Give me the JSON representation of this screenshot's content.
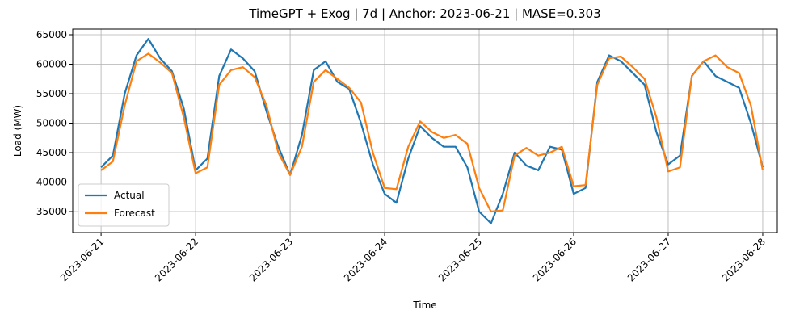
{
  "chart_data": {
    "type": "line",
    "title": "TimeGPT + Exog | 7d | Anchor: 2023-06-21 | MASE=0.303",
    "x_label": "Time",
    "y_label": "Load (MW)",
    "x": [
      0,
      3,
      6,
      9,
      12,
      15,
      18,
      21,
      24,
      27,
      30,
      33,
      36,
      39,
      42,
      45,
      48,
      51,
      54,
      57,
      60,
      63,
      66,
      69,
      72,
      75,
      78,
      81,
      84,
      87,
      90,
      93,
      96,
      99,
      102,
      105,
      108,
      111,
      114,
      117,
      120,
      123,
      126,
      129,
      132,
      135,
      138,
      141,
      144,
      147,
      150,
      153,
      156,
      159,
      162,
      165,
      168
    ],
    "series": [
      {
        "name": "Actual",
        "color": "#1f77b4",
        "values": [
          42500,
          44500,
          55000,
          61500,
          64300,
          61000,
          58800,
          52500,
          42000,
          44000,
          58000,
          62500,
          61000,
          58800,
          52000,
          46000,
          41200,
          48000,
          59000,
          60500,
          57000,
          55800,
          50000,
          43000,
          38000,
          36500,
          44000,
          49500,
          47500,
          46000,
          46000,
          42500,
          35000,
          33000,
          38000,
          45000,
          42800,
          42000,
          46000,
          45500,
          38000,
          39000,
          57000,
          61500,
          60500,
          58500,
          56500,
          48500,
          43000,
          44500,
          58000,
          60500,
          58000,
          57000,
          56000,
          50000,
          42500
        ]
      },
      {
        "name": "Forecast",
        "color": "#ff7f0e",
        "values": [
          42000,
          43500,
          53000,
          60500,
          61800,
          60300,
          58500,
          51000,
          41500,
          42500,
          56500,
          59000,
          59500,
          57800,
          53000,
          45000,
          41200,
          46000,
          57000,
          59000,
          57500,
          56000,
          53500,
          45000,
          39000,
          38800,
          46000,
          50300,
          48500,
          47500,
          48000,
          46500,
          39000,
          35000,
          35200,
          44500,
          45800,
          44500,
          45000,
          46000,
          39300,
          39500,
          56500,
          61000,
          61300,
          59500,
          57500,
          51000,
          41800,
          42500,
          58000,
          60500,
          61500,
          59500,
          58500,
          53000,
          42000
        ]
      }
    ],
    "xlim": [
      -7.2,
      171.7
    ],
    "xticks": [
      {
        "value": 0,
        "label": "2023-06-21"
      },
      {
        "value": 24,
        "label": "2023-06-22"
      },
      {
        "value": 48,
        "label": "2023-06-23"
      },
      {
        "value": 72,
        "label": "2023-06-24"
      },
      {
        "value": 96,
        "label": "2023-06-25"
      },
      {
        "value": 120,
        "label": "2023-06-26"
      },
      {
        "value": 144,
        "label": "2023-06-27"
      },
      {
        "value": 168,
        "label": "2023-06-28"
      }
    ],
    "ylim": [
      31440,
      65960
    ],
    "yticks": [
      35000,
      40000,
      45000,
      50000,
      55000,
      60000,
      65000
    ],
    "grid": true,
    "legend": "lower left"
  }
}
